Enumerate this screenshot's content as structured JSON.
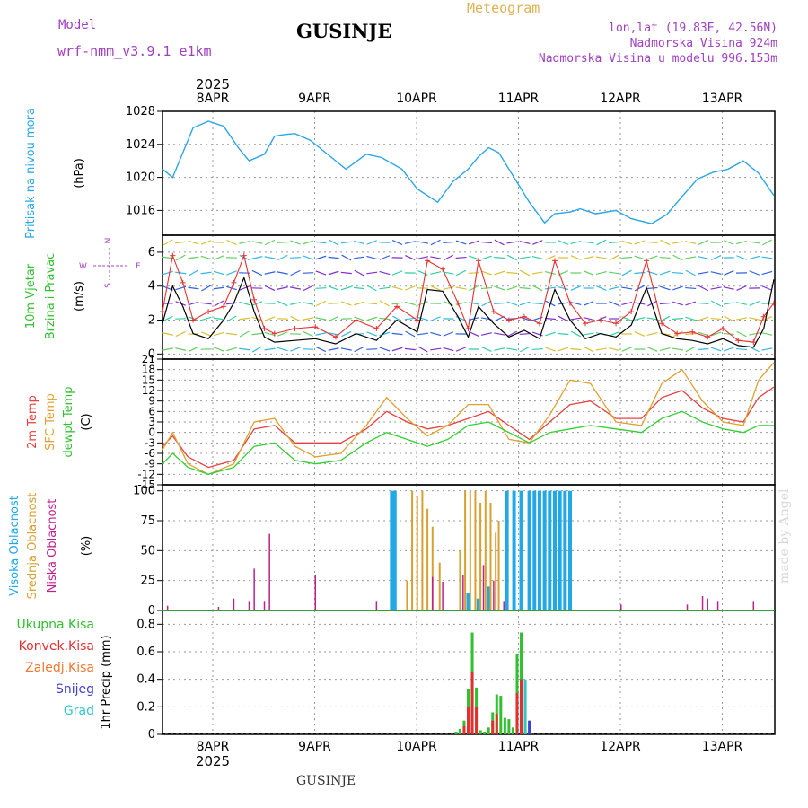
{
  "header": {
    "model_label": "Model",
    "model_name": "wrf-nmm_v3.9.1 e1km",
    "title": "GUSINJE",
    "meteogram_label": "Meteogram",
    "coords": "lon,lat (19.83E, 42.56N)",
    "altitude": "Nadmorska Visina 924m",
    "model_altitude": "Nadmorska Visina u modelu 996.153m"
  },
  "footer": {
    "location": "GUSINJE",
    "signature": "made by Angel"
  },
  "time_axis": {
    "top_year": "2025",
    "bottom_year": "2025",
    "dates": [
      "8APR",
      "9APR",
      "10APR",
      "11APR",
      "12APR",
      "13APR"
    ]
  },
  "colors": {
    "pressure": "#2aa6e8",
    "wind_speed": "#000000",
    "wind_gust": "#e83030",
    "temp_2m": "#e84040",
    "temp_sfc": "#e0a030",
    "dewpoint": "#30d030",
    "cloud_high": "#20a8e8",
    "cloud_mid": "#d8a030",
    "cloud_low": "#c0208c",
    "precip_total": "#30c030",
    "precip_conv": "#e03030",
    "precip_frozen": "#f07830",
    "snow": "#4040d0",
    "hail": "#30c8c8"
  },
  "chart_data": [
    {
      "type": "line",
      "panel": "pressure",
      "ylabel_line1": "Pritisak na nivou mora",
      "ylabel_unit": "(hPa)",
      "yticks": [
        1016,
        1020,
        1024,
        1028
      ],
      "ylim": [
        1013,
        1028
      ],
      "xlim": [
        0,
        6
      ],
      "grid": true,
      "series": [
        {
          "x": [
            0,
            0.1,
            0.2,
            0.3,
            0.45,
            0.6,
            0.75,
            0.85,
            1.0,
            1.1,
            1.2,
            1.3,
            1.45,
            1.6,
            1.8,
            2.0,
            2.15,
            2.35,
            2.5,
            2.7,
            2.85,
            3.0,
            3.1,
            3.2,
            3.3,
            3.45,
            3.6,
            3.75,
            3.85,
            4.0,
            4.1,
            4.25,
            4.45,
            4.6,
            4.8,
            4.95,
            5.1,
            5.25,
            5.4,
            5.55,
            5.7,
            5.85,
            6.0
          ],
          "values": [
            1021,
            1020,
            1023,
            1026,
            1026.8,
            1026.2,
            1023.5,
            1022,
            1022.8,
            1025,
            1025.2,
            1025.3,
            1024.5,
            1023,
            1021,
            1022.8,
            1022.4,
            1021,
            1018.6,
            1017,
            1019.5,
            1021,
            1022.5,
            1023.6,
            1023,
            1020,
            1017,
            1014.5,
            1015.6,
            1015.8,
            1016.2,
            1015.6,
            1016,
            1015,
            1014.4,
            1015.5,
            1017.7,
            1019.8,
            1020.6,
            1021,
            1022,
            1020.5,
            1017.8
          ]
        }
      ]
    },
    {
      "type": "line",
      "panel": "wind",
      "ylabel_line1": "10m Vjetar",
      "ylabel_line2": "Brzina i Pravac",
      "ylabel_unit": "(m/s)",
      "compass": {
        "north": "N",
        "south": "S",
        "east": "E",
        "west": "W"
      },
      "yticks": [
        0,
        2,
        4,
        6
      ],
      "ylim": [
        -0.3,
        7
      ],
      "xlim": [
        0,
        6
      ],
      "grid": true,
      "series": [
        {
          "name": "speed",
          "x": [
            0,
            0.1,
            0.2,
            0.3,
            0.45,
            0.6,
            0.7,
            0.8,
            0.9,
            1.0,
            1.1,
            1.3,
            1.5,
            1.7,
            1.9,
            2.1,
            2.3,
            2.5,
            2.6,
            2.75,
            2.9,
            3.0,
            3.1,
            3.25,
            3.4,
            3.55,
            3.7,
            3.85,
            4.0,
            4.15,
            4.3,
            4.45,
            4.6,
            4.75,
            4.9,
            5.05,
            5.2,
            5.35,
            5.5,
            5.65,
            5.8,
            5.9,
            6.0
          ],
          "values": [
            1.8,
            4.0,
            2.8,
            1.2,
            0.9,
            2.0,
            3.0,
            4.5,
            2.5,
            1.0,
            0.7,
            0.8,
            0.9,
            0.6,
            1.2,
            0.8,
            2.0,
            1.3,
            3.8,
            3.7,
            2.2,
            1.0,
            2.8,
            1.8,
            1.0,
            1.4,
            0.9,
            3.8,
            2.0,
            0.9,
            1.2,
            1.0,
            1.7,
            3.9,
            1.2,
            0.9,
            0.8,
            0.6,
            0.9,
            0.5,
            0.4,
            1.5,
            4.4
          ]
        },
        {
          "name": "gust",
          "x": [
            0,
            0.1,
            0.2,
            0.3,
            0.45,
            0.6,
            0.7,
            0.8,
            0.9,
            1.0,
            1.1,
            1.3,
            1.5,
            1.7,
            1.9,
            2.1,
            2.3,
            2.5,
            2.6,
            2.75,
            2.9,
            3.0,
            3.1,
            3.25,
            3.4,
            3.55,
            3.7,
            3.85,
            4.0,
            4.15,
            4.3,
            4.45,
            4.6,
            4.75,
            4.9,
            5.05,
            5.2,
            5.35,
            5.5,
            5.65,
            5.8,
            5.9,
            6.0
          ],
          "values": [
            2.5,
            5.8,
            4.2,
            2.0,
            2.5,
            2.8,
            4.2,
            5.8,
            3.2,
            1.5,
            1.2,
            1.5,
            1.6,
            1.0,
            2.0,
            1.5,
            2.8,
            2.0,
            5.5,
            5.0,
            3.0,
            1.5,
            5.5,
            2.5,
            2.0,
            2.2,
            1.8,
            5.5,
            3.0,
            1.8,
            2.0,
            1.8,
            2.5,
            5.5,
            1.8,
            1.2,
            1.3,
            1.0,
            1.5,
            0.8,
            0.7,
            2.2,
            3.0
          ]
        }
      ]
    },
    {
      "type": "line",
      "panel": "temperature",
      "ylabel_line1": "2m Temp",
      "ylabel_line2": "SFC Temp",
      "ylabel_line3": "dewpt Temp",
      "ylabel_unit": "(C)",
      "yticks": [
        -15,
        -12,
        -9,
        -6,
        -3,
        0,
        3,
        6,
        9,
        12,
        15,
        18,
        21
      ],
      "ylim": [
        -15,
        21
      ],
      "xlim": [
        0,
        6
      ],
      "grid": true,
      "series": [
        {
          "name": "2m Temp",
          "x": [
            0,
            0.1,
            0.25,
            0.45,
            0.7,
            0.9,
            1.1,
            1.3,
            1.5,
            1.75,
            2.0,
            2.2,
            2.4,
            2.6,
            2.8,
            3.0,
            3.2,
            3.4,
            3.6,
            3.8,
            4.0,
            4.2,
            4.45,
            4.7,
            4.9,
            5.1,
            5.3,
            5.5,
            5.7,
            5.85,
            6.0
          ],
          "values": [
            -4,
            -1,
            -7,
            -10,
            -8,
            1,
            2,
            -3,
            -3,
            -3,
            1,
            6,
            3,
            1,
            2,
            4,
            6,
            2,
            -2,
            3,
            8,
            9,
            4,
            4,
            10,
            12,
            7,
            4,
            3,
            10,
            13
          ]
        },
        {
          "name": "SFC Temp",
          "x": [
            0,
            0.1,
            0.25,
            0.45,
            0.7,
            0.9,
            1.1,
            1.3,
            1.5,
            1.75,
            2.0,
            2.2,
            2.4,
            2.6,
            2.8,
            3.0,
            3.2,
            3.4,
            3.6,
            3.8,
            4.0,
            4.2,
            4.45,
            4.7,
            4.9,
            5.1,
            5.3,
            5.5,
            5.7,
            5.85,
            6.0
          ],
          "values": [
            -5,
            0,
            -9,
            -12,
            -9,
            3,
            4,
            -4,
            -7,
            -6,
            2,
            10,
            4,
            -1,
            2,
            8,
            8,
            -2,
            -3,
            5,
            15,
            14,
            3,
            2,
            14,
            18,
            9,
            3,
            2,
            15,
            20
          ]
        },
        {
          "name": "dewpt Temp",
          "x": [
            0,
            0.1,
            0.25,
            0.45,
            0.7,
            0.9,
            1.1,
            1.3,
            1.5,
            1.75,
            2.0,
            2.2,
            2.4,
            2.6,
            2.8,
            3.0,
            3.2,
            3.4,
            3.6,
            3.8,
            4.0,
            4.2,
            4.45,
            4.7,
            4.9,
            5.1,
            5.3,
            5.5,
            5.7,
            5.85,
            6.0
          ],
          "values": [
            -9,
            -6,
            -10,
            -12,
            -10,
            -4,
            -3,
            -8,
            -9,
            -8,
            -3,
            0,
            -2,
            -4,
            -2,
            2,
            3,
            0,
            -3,
            0,
            1,
            2,
            1,
            0,
            4,
            6,
            3,
            1,
            0,
            2,
            2
          ]
        }
      ]
    },
    {
      "type": "bar",
      "panel": "clouds",
      "ylabel_line1": "Visoka Oblacnost",
      "ylabel_line2": "Srednja Oblacnost",
      "ylabel_line3": "Niska Oblacnost",
      "ylabel_unit": "(%)",
      "yticks": [
        0,
        25,
        50,
        75,
        100
      ],
      "ylim": [
        0,
        105
      ],
      "xlim": [
        0,
        6
      ],
      "grid": true,
      "series": [
        {
          "name": "Visoka Oblacnost",
          "x": [
            2.25,
            2.28,
            3.38,
            3.45,
            3.52,
            3.6,
            3.65,
            3.7,
            3.75,
            3.8,
            3.85,
            3.9,
            3.95,
            4.0,
            3.0,
            3.1,
            3.2
          ],
          "values": [
            100,
            100,
            100,
            100,
            100,
            100,
            100,
            100,
            100,
            100,
            100,
            100,
            100,
            100,
            15,
            10,
            20
          ]
        },
        {
          "name": "Srednja Oblacnost",
          "x": [
            2.4,
            2.45,
            2.5,
            2.55,
            2.6,
            2.65,
            2.72,
            2.92,
            2.97,
            3.02,
            3.07,
            3.12,
            3.17,
            3.22,
            3.27,
            3.3
          ],
          "values": [
            25,
            100,
            95,
            100,
            85,
            70,
            40,
            50,
            100,
            100,
            100,
            90,
            100,
            90,
            65,
            75
          ]
        },
        {
          "name": "Niska Oblacnost",
          "x": [
            0.05,
            0.55,
            0.7,
            0.85,
            0.9,
            1.0,
            1.05,
            1.5,
            2.1,
            2.65,
            2.75,
            2.95,
            3.15,
            3.25,
            3.35,
            4.5,
            5.15,
            5.3,
            5.35,
            5.45,
            5.8
          ],
          "values": [
            4,
            3,
            10,
            8,
            35,
            8,
            64,
            30,
            8,
            28,
            24,
            30,
            38,
            25,
            8,
            5,
            5,
            12,
            10,
            8,
            8
          ]
        }
      ]
    },
    {
      "type": "bar",
      "panel": "precipitation",
      "legend": [
        "Ukupna Kisa",
        "Konvek.Kisa",
        "Zaledj.Kisa",
        "Snijeg",
        "Grad"
      ],
      "ylabel_unit": "1hr Precip (mm)",
      "yticks": [
        0,
        0.2,
        0.4,
        0.6,
        0.8
      ],
      "ylim": [
        0,
        0.9
      ],
      "xlim": [
        0,
        6
      ],
      "grid": true,
      "series": [
        {
          "name": "Ukupna Kisa",
          "x": [
            2.88,
            2.92,
            2.96,
            3.0,
            3.04,
            3.08,
            3.12,
            3.16,
            3.2,
            3.24,
            3.28,
            3.32,
            3.36,
            3.4,
            3.44,
            3.48,
            3.52,
            3.56
          ],
          "values": [
            0.02,
            0.04,
            0.1,
            0.33,
            0.74,
            0.34,
            0.03,
            0.02,
            0.05,
            0.16,
            0.29,
            0.28,
            0.12,
            0.11,
            0.05,
            0.58,
            0.74,
            0.38
          ]
        },
        {
          "name": "Konvek.Kisa",
          "x": [
            2.96,
            3.0,
            3.04,
            3.08,
            3.24,
            3.28,
            3.48,
            3.52
          ],
          "values": [
            0.06,
            0.2,
            0.45,
            0.2,
            0.1,
            0.15,
            0.3,
            0.4
          ]
        },
        {
          "name": "Snijeg",
          "x": [
            3.6
          ],
          "values": [
            0.1
          ]
        },
        {
          "name": "Grad",
          "x": [
            3.56
          ],
          "values": [
            0.4
          ]
        }
      ]
    }
  ]
}
